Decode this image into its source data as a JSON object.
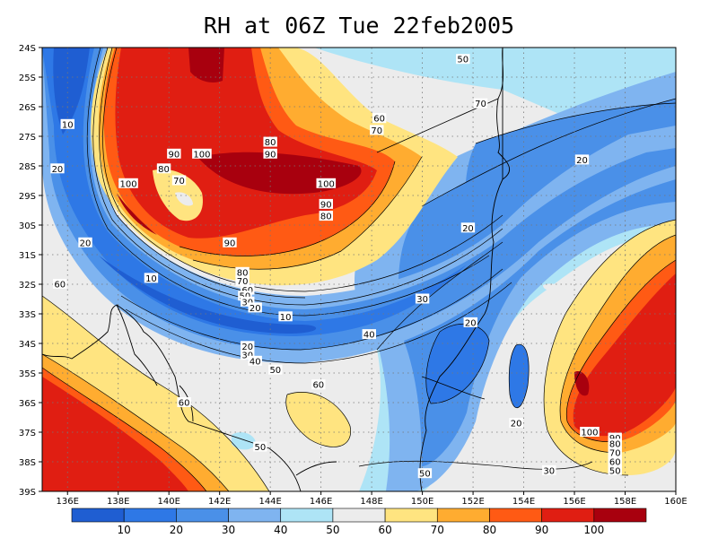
{
  "title": "RH at 06Z Tue 22feb2005",
  "map": {
    "lon_range": [
      135,
      160
    ],
    "lat_range": [
      -39,
      -24
    ],
    "lon_ticks": [
      "136E",
      "138E",
      "140E",
      "142E",
      "144E",
      "146E",
      "148E",
      "150E",
      "152E",
      "154E",
      "156E",
      "158E",
      "160E"
    ],
    "lat_ticks": [
      "24S",
      "25S",
      "26S",
      "27S",
      "28S",
      "29S",
      "30S",
      "31S",
      "32S",
      "33S",
      "34S",
      "35S",
      "36S",
      "37S",
      "38S",
      "39S"
    ],
    "contour_labels": [
      {
        "t": "10",
        "lon": 136.0,
        "lat": -26.6
      },
      {
        "t": "20",
        "lon": 135.6,
        "lat": -28.1
      },
      {
        "t": "90",
        "lon": 140.2,
        "lat": -27.6
      },
      {
        "t": "100",
        "lon": 141.3,
        "lat": -27.6
      },
      {
        "t": "80",
        "lon": 139.8,
        "lat": -28.1
      },
      {
        "t": "70",
        "lon": 140.4,
        "lat": -28.5
      },
      {
        "t": "100",
        "lon": 138.4,
        "lat": -28.6
      },
      {
        "t": "80",
        "lon": 144.0,
        "lat": -27.2
      },
      {
        "t": "90",
        "lon": 144.0,
        "lat": -27.6
      },
      {
        "t": "100",
        "lon": 146.2,
        "lat": -28.6
      },
      {
        "t": "90",
        "lon": 146.2,
        "lat": -29.3
      },
      {
        "t": "80",
        "lon": 146.2,
        "lat": -29.7
      },
      {
        "t": "90",
        "lon": 142.4,
        "lat": -30.6
      },
      {
        "t": "20",
        "lon": 136.7,
        "lat": -30.6
      },
      {
        "t": "60",
        "lon": 135.7,
        "lat": -32.0
      },
      {
        "t": "10",
        "lon": 139.3,
        "lat": -31.8
      },
      {
        "t": "80",
        "lon": 142.9,
        "lat": -31.6
      },
      {
        "t": "70",
        "lon": 142.9,
        "lat": -31.9
      },
      {
        "t": "60",
        "lon": 143.1,
        "lat": -32.2
      },
      {
        "t": "50",
        "lon": 143.0,
        "lat": -32.4
      },
      {
        "t": "30",
        "lon": 143.1,
        "lat": -32.6
      },
      {
        "t": "20",
        "lon": 143.4,
        "lat": -32.8
      },
      {
        "t": "10",
        "lon": 144.6,
        "lat": -33.1
      },
      {
        "t": "20",
        "lon": 143.1,
        "lat": -34.1
      },
      {
        "t": "30",
        "lon": 143.1,
        "lat": -34.4
      },
      {
        "t": "40",
        "lon": 143.4,
        "lat": -34.6
      },
      {
        "t": "50",
        "lon": 144.2,
        "lat": -34.9
      },
      {
        "t": "40",
        "lon": 147.9,
        "lat": -33.7
      },
      {
        "t": "30",
        "lon": 150.0,
        "lat": -32.5
      },
      {
        "t": "20",
        "lon": 151.9,
        "lat": -33.3
      },
      {
        "t": "60",
        "lon": 145.9,
        "lat": -35.4
      },
      {
        "t": "60",
        "lon": 140.6,
        "lat": -36.0
      },
      {
        "t": "50",
        "lon": 143.6,
        "lat": -37.5
      },
      {
        "t": "50",
        "lon": 150.1,
        "lat": -38.4
      },
      {
        "t": "20",
        "lon": 153.7,
        "lat": -36.7
      },
      {
        "t": "30",
        "lon": 155.0,
        "lat": -38.3
      },
      {
        "t": "100",
        "lon": 156.6,
        "lat": -37.0
      },
      {
        "t": "90",
        "lon": 157.6,
        "lat": -37.2
      },
      {
        "t": "80",
        "lon": 157.6,
        "lat": -37.4
      },
      {
        "t": "70",
        "lon": 157.6,
        "lat": -37.7
      },
      {
        "t": "60",
        "lon": 157.6,
        "lat": -38.0
      },
      {
        "t": "50",
        "lon": 157.6,
        "lat": -38.3
      },
      {
        "t": "70",
        "lon": 152.3,
        "lat": -25.9
      },
      {
        "t": "60",
        "lon": 148.3,
        "lat": -26.4
      },
      {
        "t": "70",
        "lon": 148.2,
        "lat": -26.8
      },
      {
        "t": "50",
        "lon": 151.6,
        "lat": -24.4
      },
      {
        "t": "20",
        "lon": 151.8,
        "lat": -30.1
      },
      {
        "t": "20",
        "lon": 156.3,
        "lat": -27.8
      }
    ]
  },
  "colorbar": {
    "colors": [
      "#1f5ed2",
      "#2e78e6",
      "#4a90e8",
      "#7fb4f0",
      "#aee4f6",
      "#ececec",
      "#ffe480",
      "#ffac30",
      "#ff5a14",
      "#e01e12",
      "#a8000e"
    ],
    "labels": [
      "10",
      "20",
      "30",
      "40",
      "50",
      "60",
      "70",
      "80",
      "90",
      "100"
    ]
  }
}
